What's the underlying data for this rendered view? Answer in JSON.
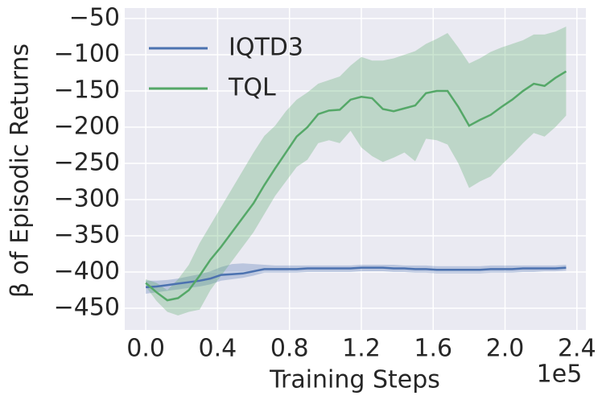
{
  "chart_data": {
    "type": "line",
    "xlabel": "Training Steps",
    "ylabel": "β of Episodic Returns",
    "x_offset_label": "1e5",
    "x": [
      0,
      0.06,
      0.12,
      0.18,
      0.24,
      0.3,
      0.36,
      0.42,
      0.48,
      0.54,
      0.6,
      0.66,
      0.72,
      0.78,
      0.84,
      0.9,
      0.96,
      1.02,
      1.08,
      1.14,
      1.2,
      1.26,
      1.32,
      1.38,
      1.44,
      1.5,
      1.56,
      1.62,
      1.68,
      1.74,
      1.8,
      1.86,
      1.92,
      1.98,
      2.04,
      2.1,
      2.16,
      2.22,
      2.28,
      2.34
    ],
    "series": [
      {
        "name": "IQTD3",
        "color": "#4c72b0",
        "values": [
          -421,
          -420,
          -418,
          -416,
          -414,
          -412,
          -409,
          -404,
          -403,
          -402,
          -399,
          -396,
          -396,
          -396,
          -396,
          -395,
          -395,
          -395,
          -395,
          -395,
          -394,
          -394,
          -394,
          -395,
          -395,
          -396,
          -396,
          -397,
          -397,
          -397,
          -397,
          -397,
          -396,
          -396,
          -396,
          -395,
          -395,
          -395,
          -395,
          -394
        ],
        "lower": [
          -430,
          -428,
          -426,
          -424,
          -422,
          -420,
          -417,
          -412,
          -410,
          -408,
          -405,
          -401,
          -401,
          -401,
          -401,
          -400,
          -400,
          -400,
          -400,
          -400,
          -399,
          -399,
          -399,
          -400,
          -400,
          -401,
          -401,
          -402,
          -402,
          -402,
          -402,
          -402,
          -401,
          -401,
          -401,
          -400,
          -400,
          -399,
          -399,
          -398
        ],
        "upper": [
          -412,
          -412,
          -411,
          -409,
          -406,
          -403,
          -399,
          -393,
          -389,
          -388,
          -389,
          -390,
          -391,
          -391,
          -391,
          -391,
          -391,
          -391,
          -391,
          -391,
          -390,
          -390,
          -390,
          -390,
          -391,
          -391,
          -391,
          -392,
          -392,
          -392,
          -392,
          -392,
          -391,
          -391,
          -391,
          -391,
          -391,
          -391,
          -391,
          -390
        ]
      },
      {
        "name": "TQL",
        "color": "#55a868",
        "values": [
          -415,
          -428,
          -439,
          -436,
          -425,
          -405,
          -383,
          -365,
          -345,
          -325,
          -305,
          -280,
          -257,
          -235,
          -213,
          -200,
          -182,
          -177,
          -176,
          -162,
          -158,
          -160,
          -175,
          -178,
          -174,
          -170,
          -153,
          -150,
          -150,
          -172,
          -198,
          -190,
          -183,
          -172,
          -162,
          -150,
          -140,
          -143,
          -132,
          -123
        ],
        "lower": [
          -420,
          -440,
          -455,
          -460,
          -455,
          -452,
          -425,
          -405,
          -385,
          -365,
          -345,
          -320,
          -295,
          -275,
          -255,
          -245,
          -222,
          -218,
          -222,
          -205,
          -228,
          -240,
          -248,
          -242,
          -235,
          -247,
          -216,
          -218,
          -224,
          -250,
          -284,
          -275,
          -268,
          -252,
          -238,
          -222,
          -208,
          -213,
          -200,
          -184
        ],
        "upper": [
          -410,
          -415,
          -425,
          -410,
          -390,
          -360,
          -335,
          -310,
          -285,
          -260,
          -235,
          -212,
          -198,
          -178,
          -162,
          -152,
          -140,
          -135,
          -130,
          -115,
          -103,
          -108,
          -108,
          -105,
          -100,
          -95,
          -85,
          -78,
          -70,
          -90,
          -112,
          -105,
          -96,
          -90,
          -85,
          -80,
          -72,
          -72,
          -68,
          -61
        ]
      }
    ],
    "xlim": [
      -0.117,
      2.45
    ],
    "ylim": [
      -480,
      -35.5
    ],
    "xticks": [
      {
        "value": 0,
        "label": "0.0"
      },
      {
        "value": 0.4,
        "label": "0.4"
      },
      {
        "value": 0.8,
        "label": "0.8"
      },
      {
        "value": 1.2,
        "label": "1.2"
      },
      {
        "value": 1.6,
        "label": "1.6"
      },
      {
        "value": 2.0,
        "label": "2.0"
      },
      {
        "value": 2.4,
        "label": "2.4"
      }
    ],
    "yticks": [
      {
        "value": -50,
        "label": "−50"
      },
      {
        "value": -100,
        "label": "−100"
      },
      {
        "value": -150,
        "label": "−150"
      },
      {
        "value": -200,
        "label": "−200"
      },
      {
        "value": -250,
        "label": "−250"
      },
      {
        "value": -300,
        "label": "−300"
      },
      {
        "value": -350,
        "label": "−350"
      },
      {
        "value": -400,
        "label": "−400"
      },
      {
        "value": -450,
        "label": "−450"
      }
    ],
    "grid": true,
    "legend": "upper left"
  }
}
